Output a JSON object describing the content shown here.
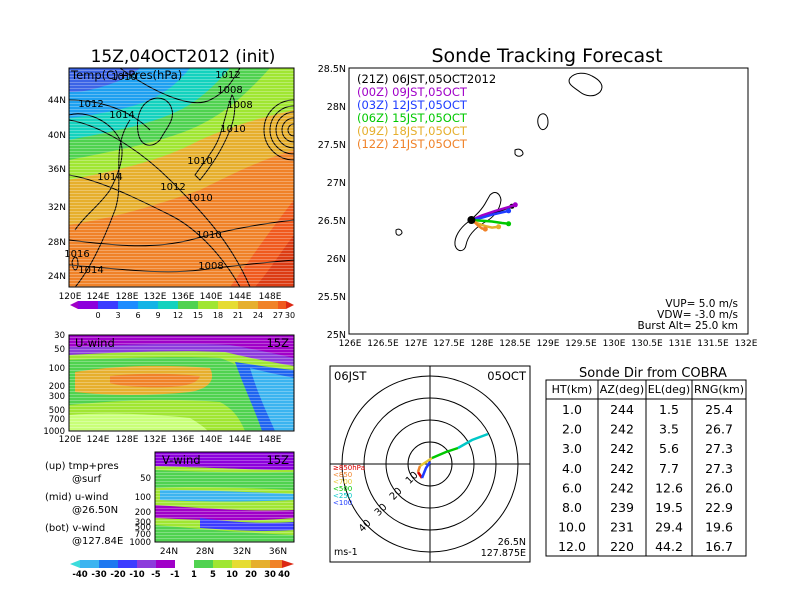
{
  "left_map": {
    "title": "15Z,04OCT2012 (init)",
    "label": "Temp(C)+Pres(hPa)",
    "x_ticks": [
      "120E",
      "124E",
      "128E",
      "132E",
      "136E",
      "140E",
      "144E",
      "148E"
    ],
    "y_ticks": [
      "24N",
      "28N",
      "32N",
      "36N",
      "40N",
      "44N"
    ],
    "isobars": [
      "1012",
      "1010",
      "1012",
      "1014",
      "1008",
      "1008",
      "1010",
      "1014",
      "1012",
      "1010",
      "1010",
      "1008",
      "1014",
      "1016"
    ],
    "colorbar": [
      "0",
      "3",
      "6",
      "9",
      "12",
      "15",
      "18",
      "21",
      "24",
      "27",
      "30"
    ]
  },
  "u_panel": {
    "label": "U-wind",
    "time": "15Z",
    "y_ticks": [
      "30",
      "50",
      "100",
      "200",
      "300",
      "500",
      "700",
      "1000"
    ],
    "x_ticks": [
      "120E",
      "124E",
      "128E",
      "132E",
      "136E",
      "140E",
      "144E",
      "148E"
    ]
  },
  "v_panel": {
    "label": "V-wind",
    "time": "15Z",
    "y_ticks": [
      "50",
      "100",
      "200",
      "300",
      "500",
      "700",
      "1000"
    ],
    "x_ticks": [
      "24N",
      "28N",
      "32N",
      "36N"
    ]
  },
  "notes": {
    "up": "(up) tmp+pres",
    "up2": "@surf",
    "mid": "(mid) u-wind",
    "mid2": "@26.50N",
    "bot": "(bot) v-wind",
    "bot2": "@127.84E"
  },
  "wind_colorbar": [
    "-40",
    "-30",
    "-20",
    "-10",
    "-5",
    "-1",
    "1",
    "5",
    "10",
    "20",
    "30",
    "40"
  ],
  "track": {
    "title": "Sonde Tracking Forecast",
    "x_ticks": [
      "126E",
      "126.5E",
      "127E",
      "127.5E",
      "128E",
      "128.5E",
      "129E",
      "129.5E",
      "130E",
      "130.5E",
      "131E",
      "131.5E",
      "132E"
    ],
    "y_ticks": [
      "25N",
      "25.5N",
      "26N",
      "26.5N",
      "27N",
      "27.5N",
      "28N",
      "28.5N"
    ],
    "legend": [
      {
        "text": "(21Z)  06JST,05OCT2012",
        "color": "#000000"
      },
      {
        "text": "(00Z)  09JST,05OCT",
        "color": "#a000c8"
      },
      {
        "text": "(03Z)  12JST,05OCT",
        "color": "#1e3cff"
      },
      {
        "text": "(06Z)  15JST,05OCT",
        "color": "#00c800"
      },
      {
        "text": "(09Z)  18JST,05OCT",
        "color": "#e6af2d"
      },
      {
        "text": "(12Z)  21JST,05OCT",
        "color": "#f08228"
      }
    ],
    "vup": "VUP=  5.0  m/s",
    "vdw": "VDW=  -3.0  m/s",
    "burst": "Burst Alt=  25.0  km"
  },
  "polar": {
    "time": "06JST",
    "date": "05OCT",
    "rings": [
      "10",
      "20",
      "30",
      "40"
    ],
    "legend": [
      "≥850hPa",
      "<850",
      "<700",
      "<500",
      "<250",
      "<100"
    ],
    "unit": "ms-1",
    "lat": "26.5N",
    "lon": "127.875E"
  },
  "table": {
    "title": "Sonde Dir from COBRA",
    "headers": [
      "HT(km)",
      "AZ(deg)",
      "EL(deg)",
      "RNG(km)"
    ],
    "rows": [
      [
        "1.0",
        "244",
        "1.5",
        "25.4"
      ],
      [
        "2.0",
        "242",
        "3.5",
        "26.7"
      ],
      [
        "3.0",
        "242",
        "5.6",
        "27.3"
      ],
      [
        "4.0",
        "242",
        "7.7",
        "27.3"
      ],
      [
        "6.0",
        "242",
        "12.6",
        "26.0"
      ],
      [
        "8.0",
        "239",
        "19.5",
        "22.9"
      ],
      [
        "10.0",
        "231",
        "29.4",
        "19.6"
      ],
      [
        "12.0",
        "220",
        "44.2",
        "16.7"
      ]
    ]
  },
  "chart_data": [
    {
      "type": "table",
      "title": "Sonde Dir from COBRA",
      "columns": [
        "HT(km)",
        "AZ(deg)",
        "EL(deg)",
        "RNG(km)"
      ],
      "rows": [
        [
          1.0,
          244,
          1.5,
          25.4
        ],
        [
          2.0,
          242,
          3.5,
          26.7
        ],
        [
          3.0,
          242,
          5.6,
          27.3
        ],
        [
          4.0,
          242,
          7.7,
          27.3
        ],
        [
          6.0,
          242,
          12.6,
          26.0
        ],
        [
          8.0,
          239,
          19.5,
          22.9
        ],
        [
          10.0,
          231,
          29.4,
          19.6
        ],
        [
          12.0,
          220,
          44.2,
          16.7
        ]
      ]
    },
    {
      "type": "line",
      "title": "Sonde Tracking Forecast",
      "xlim": [
        126,
        132
      ],
      "ylim": [
        25,
        28.5
      ],
      "series": [
        {
          "name": "(21Z)  06JST,05OCT2012",
          "x": [
            127.84,
            128.0,
            128.2,
            128.35,
            128.45
          ],
          "y": [
            26.5,
            26.55,
            26.6,
            26.65,
            26.68
          ]
        },
        {
          "name": "(00Z)  09JST,05OCT",
          "x": [
            127.84,
            128.0,
            128.2,
            128.4,
            128.5
          ],
          "y": [
            26.5,
            26.56,
            26.62,
            26.67,
            26.7
          ]
        },
        {
          "name": "(03Z)  12JST,05OCT",
          "x": [
            127.84,
            128.0,
            128.15,
            128.3,
            128.4
          ],
          "y": [
            26.5,
            26.53,
            26.57,
            26.6,
            26.62
          ]
        },
        {
          "name": "(06Z)  15JST,05OCT",
          "x": [
            127.84,
            128.0,
            128.15,
            128.3,
            128.4
          ],
          "y": [
            26.5,
            26.49,
            26.48,
            26.46,
            26.45
          ]
        },
        {
          "name": "(09Z)  18JST,05OCT",
          "x": [
            127.84,
            127.95,
            128.05,
            128.15,
            128.25
          ],
          "y": [
            26.5,
            26.45,
            26.42,
            26.4,
            26.41
          ]
        },
        {
          "name": "(12Z)  21JST,05OCT",
          "x": [
            127.84,
            127.9,
            127.95,
            128.0,
            128.05
          ],
          "y": [
            26.5,
            26.46,
            26.42,
            26.39,
            26.38
          ]
        }
      ]
    }
  ]
}
